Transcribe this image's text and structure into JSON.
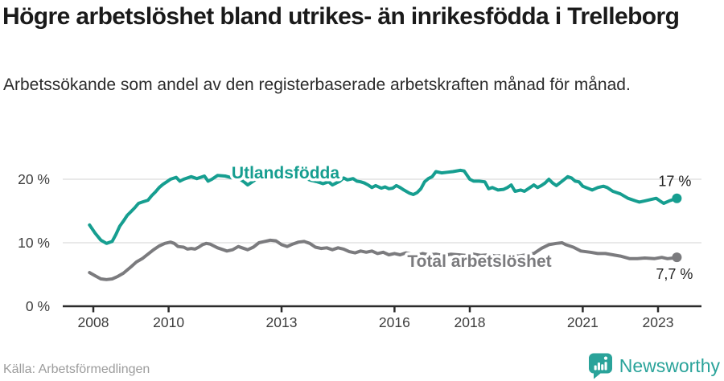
{
  "header": {
    "title": "Högre arbetslöshet bland utrikes- än inrikesfödda i Trelleborg",
    "subtitle": "Arbetssökande som andel av den registerbaserade arbetskraften månad för månad."
  },
  "footer": {
    "source": "Källa: Arbetsförmedlingen",
    "brand": "Newsworthy"
  },
  "colors": {
    "accent_teal": "#169e90",
    "line_gray": "#7b7b7e",
    "gridline": "#dcdcdc",
    "axis": "#2b2b2b",
    "tick_label": "#3d3d3d",
    "annotation": "#222222",
    "brand_teal": "#2aa39a"
  },
  "chart_data": {
    "type": "line",
    "title": "Högre arbetslöshet bland utrikes- än inrikesfödda i Trelleborg",
    "subtitle": "Arbetssökande som andel av den registerbaserade arbetskraften månad för månad.",
    "unit": "%",
    "grid": true,
    "x_axis": {
      "range": [
        2007.85,
        2024.2
      ],
      "ticks": [
        2008,
        2010,
        2013,
        2016,
        2018,
        2021,
        2023
      ],
      "tick_labels": [
        "2008",
        "2010",
        "2013",
        "2016",
        "2018",
        "2021",
        "2023"
      ]
    },
    "y_axis": {
      "range": [
        0,
        24.8
      ],
      "ticks": [
        0,
        10,
        20
      ],
      "tick_labels": [
        "0 %",
        "10 %",
        "20 %"
      ]
    },
    "series": [
      {
        "name": "Utlandsfödda",
        "slug": "utlandsfodda",
        "color": "#169e90",
        "end_label": "17 %",
        "end_value": 17.0,
        "label_anchor": {
          "x": 355,
          "y": 37
        },
        "points": [
          [
            2007.9,
            12.8
          ],
          [
            2008.05,
            11.5
          ],
          [
            2008.2,
            10.4
          ],
          [
            2008.35,
            9.9
          ],
          [
            2008.5,
            10.2
          ],
          [
            2008.6,
            11.3
          ],
          [
            2008.7,
            12.6
          ],
          [
            2008.8,
            13.4
          ],
          [
            2008.9,
            14.3
          ],
          [
            2009.0,
            14.9
          ],
          [
            2009.1,
            15.5
          ],
          [
            2009.2,
            16.2
          ],
          [
            2009.3,
            16.4
          ],
          [
            2009.45,
            16.7
          ],
          [
            2009.55,
            17.4
          ],
          [
            2009.65,
            18.0
          ],
          [
            2009.75,
            18.7
          ],
          [
            2009.85,
            19.2
          ],
          [
            2009.95,
            19.6
          ],
          [
            2010.05,
            20.0
          ],
          [
            2010.2,
            20.3
          ],
          [
            2010.3,
            19.7
          ],
          [
            2010.4,
            20.0
          ],
          [
            2010.5,
            20.2
          ],
          [
            2010.6,
            20.4
          ],
          [
            2010.75,
            20.1
          ],
          [
            2010.85,
            20.3
          ],
          [
            2010.95,
            20.5
          ],
          [
            2011.05,
            19.7
          ],
          [
            2011.15,
            20.0
          ],
          [
            2011.3,
            20.6
          ],
          [
            2011.5,
            20.5
          ],
          [
            2011.7,
            20.2
          ],
          [
            2011.9,
            20.0
          ],
          [
            2012.0,
            19.6
          ],
          [
            2012.1,
            19.1
          ],
          [
            2012.25,
            19.7
          ],
          [
            2012.4,
            20.3
          ],
          [
            2012.55,
            20.6
          ],
          [
            2012.7,
            20.8
          ],
          [
            2012.85,
            21.0
          ],
          [
            2013.05,
            21.3
          ],
          [
            2013.2,
            21.2
          ],
          [
            2013.35,
            21.0
          ],
          [
            2013.5,
            20.6
          ],
          [
            2013.65,
            20.1
          ],
          [
            2013.8,
            19.8
          ],
          [
            2013.95,
            19.6
          ],
          [
            2014.1,
            19.3
          ],
          [
            2014.25,
            19.6
          ],
          [
            2014.35,
            19.1
          ],
          [
            2014.45,
            19.4
          ],
          [
            2014.55,
            19.7
          ],
          [
            2014.65,
            20.2
          ],
          [
            2014.75,
            19.9
          ],
          [
            2014.9,
            20.1
          ],
          [
            2015.0,
            19.7
          ],
          [
            2015.1,
            19.6
          ],
          [
            2015.2,
            19.4
          ],
          [
            2015.3,
            19.1
          ],
          [
            2015.4,
            18.7
          ],
          [
            2015.5,
            19.0
          ],
          [
            2015.65,
            18.6
          ],
          [
            2015.75,
            18.8
          ],
          [
            2015.85,
            18.5
          ],
          [
            2015.95,
            18.6
          ],
          [
            2016.05,
            19.0
          ],
          [
            2016.15,
            18.7
          ],
          [
            2016.25,
            18.3
          ],
          [
            2016.4,
            17.8
          ],
          [
            2016.5,
            17.6
          ],
          [
            2016.6,
            17.9
          ],
          [
            2016.7,
            18.5
          ],
          [
            2016.8,
            19.6
          ],
          [
            2016.9,
            20.1
          ],
          [
            2017.0,
            20.4
          ],
          [
            2017.1,
            21.2
          ],
          [
            2017.25,
            21.0
          ],
          [
            2017.4,
            21.1
          ],
          [
            2017.55,
            21.2
          ],
          [
            2017.75,
            21.4
          ],
          [
            2017.85,
            21.3
          ],
          [
            2018.0,
            20.0
          ],
          [
            2018.1,
            19.7
          ],
          [
            2018.25,
            19.7
          ],
          [
            2018.4,
            19.6
          ],
          [
            2018.5,
            18.5
          ],
          [
            2018.6,
            18.7
          ],
          [
            2018.75,
            18.3
          ],
          [
            2018.9,
            18.4
          ],
          [
            2019.0,
            18.7
          ],
          [
            2019.1,
            19.1
          ],
          [
            2019.2,
            18.1
          ],
          [
            2019.35,
            18.3
          ],
          [
            2019.45,
            18.1
          ],
          [
            2019.6,
            18.7
          ],
          [
            2019.7,
            19.1
          ],
          [
            2019.8,
            18.7
          ],
          [
            2019.9,
            19.0
          ],
          [
            2020.0,
            19.4
          ],
          [
            2020.1,
            20.0
          ],
          [
            2020.2,
            19.4
          ],
          [
            2020.3,
            19.0
          ],
          [
            2020.45,
            19.7
          ],
          [
            2020.6,
            20.4
          ],
          [
            2020.7,
            20.2
          ],
          [
            2020.8,
            19.7
          ],
          [
            2020.9,
            19.6
          ],
          [
            2021.0,
            18.9
          ],
          [
            2021.25,
            18.3
          ],
          [
            2021.4,
            18.7
          ],
          [
            2021.55,
            18.9
          ],
          [
            2021.65,
            18.7
          ],
          [
            2021.8,
            18.1
          ],
          [
            2022.0,
            17.7
          ],
          [
            2022.2,
            17.0
          ],
          [
            2022.4,
            16.6
          ],
          [
            2022.5,
            16.4
          ],
          [
            2022.65,
            16.6
          ],
          [
            2022.8,
            16.8
          ],
          [
            2022.95,
            17.0
          ],
          [
            2023.05,
            16.6
          ],
          [
            2023.15,
            16.2
          ],
          [
            2023.3,
            16.6
          ],
          [
            2023.4,
            16.8
          ],
          [
            2023.5,
            17.0
          ]
        ]
      },
      {
        "name": "Total arbetslöshet",
        "slug": "total-arbetsloshet",
        "color": "#7b7b7e",
        "end_label": "7,7 %",
        "end_value": 7.7,
        "label_anchor": {
          "x": 596,
          "y": 147
        },
        "points": [
          [
            2007.9,
            5.3
          ],
          [
            2008.05,
            4.8
          ],
          [
            2008.2,
            4.3
          ],
          [
            2008.35,
            4.2
          ],
          [
            2008.5,
            4.3
          ],
          [
            2008.65,
            4.7
          ],
          [
            2008.8,
            5.2
          ],
          [
            2009.0,
            6.2
          ],
          [
            2009.15,
            7.0
          ],
          [
            2009.3,
            7.5
          ],
          [
            2009.45,
            8.2
          ],
          [
            2009.6,
            8.9
          ],
          [
            2009.75,
            9.5
          ],
          [
            2009.9,
            9.9
          ],
          [
            2010.05,
            10.1
          ],
          [
            2010.15,
            9.9
          ],
          [
            2010.25,
            9.4
          ],
          [
            2010.4,
            9.3
          ],
          [
            2010.5,
            9.0
          ],
          [
            2010.6,
            9.1
          ],
          [
            2010.7,
            9.0
          ],
          [
            2010.8,
            9.3
          ],
          [
            2010.9,
            9.7
          ],
          [
            2011.0,
            9.9
          ],
          [
            2011.1,
            9.8
          ],
          [
            2011.2,
            9.5
          ],
          [
            2011.3,
            9.2
          ],
          [
            2011.45,
            8.9
          ],
          [
            2011.55,
            8.7
          ],
          [
            2011.7,
            8.9
          ],
          [
            2011.85,
            9.4
          ],
          [
            2011.95,
            9.2
          ],
          [
            2012.1,
            8.9
          ],
          [
            2012.25,
            9.3
          ],
          [
            2012.4,
            10.0
          ],
          [
            2012.55,
            10.2
          ],
          [
            2012.7,
            10.4
          ],
          [
            2012.85,
            10.3
          ],
          [
            2013.0,
            9.7
          ],
          [
            2013.15,
            9.4
          ],
          [
            2013.3,
            9.8
          ],
          [
            2013.45,
            10.1
          ],
          [
            2013.6,
            10.2
          ],
          [
            2013.75,
            9.9
          ],
          [
            2013.9,
            9.3
          ],
          [
            2014.05,
            9.1
          ],
          [
            2014.2,
            9.2
          ],
          [
            2014.35,
            8.9
          ],
          [
            2014.5,
            9.2
          ],
          [
            2014.65,
            9.0
          ],
          [
            2014.8,
            8.6
          ],
          [
            2014.95,
            8.4
          ],
          [
            2015.1,
            8.7
          ],
          [
            2015.25,
            8.5
          ],
          [
            2015.4,
            8.7
          ],
          [
            2015.55,
            8.3
          ],
          [
            2015.7,
            8.5
          ],
          [
            2015.85,
            8.1
          ],
          [
            2016.0,
            8.3
          ],
          [
            2016.15,
            8.1
          ],
          [
            2016.3,
            8.4
          ],
          [
            2016.45,
            8.2
          ],
          [
            2016.6,
            8.0
          ],
          [
            2016.75,
            8.3
          ],
          [
            2016.9,
            8.1
          ],
          [
            2017.1,
            8.2
          ],
          [
            2017.3,
            8.0
          ],
          [
            2017.5,
            8.2
          ],
          [
            2017.7,
            8.1
          ],
          [
            2017.9,
            8.0
          ],
          [
            2018.1,
            8.2
          ],
          [
            2018.3,
            8.0
          ],
          [
            2018.5,
            8.1
          ],
          [
            2018.7,
            7.9
          ],
          [
            2018.9,
            8.0
          ],
          [
            2019.1,
            8.1
          ],
          [
            2019.3,
            7.9
          ],
          [
            2019.5,
            8.1
          ],
          [
            2019.7,
            8.3
          ],
          [
            2019.9,
            9.1
          ],
          [
            2020.1,
            9.7
          ],
          [
            2020.3,
            9.9
          ],
          [
            2020.45,
            10.0
          ],
          [
            2020.55,
            9.7
          ],
          [
            2020.75,
            9.3
          ],
          [
            2020.95,
            8.7
          ],
          [
            2021.2,
            8.5
          ],
          [
            2021.4,
            8.3
          ],
          [
            2021.6,
            8.3
          ],
          [
            2021.8,
            8.1
          ],
          [
            2022.0,
            7.9
          ],
          [
            2022.25,
            7.5
          ],
          [
            2022.45,
            7.5
          ],
          [
            2022.65,
            7.6
          ],
          [
            2022.9,
            7.5
          ],
          [
            2023.1,
            7.7
          ],
          [
            2023.25,
            7.5
          ],
          [
            2023.4,
            7.6
          ],
          [
            2023.5,
            7.7
          ]
        ]
      }
    ],
    "legend_position": "inline-labels",
    "annotations": [
      "17 %",
      "7,7 %"
    ]
  }
}
